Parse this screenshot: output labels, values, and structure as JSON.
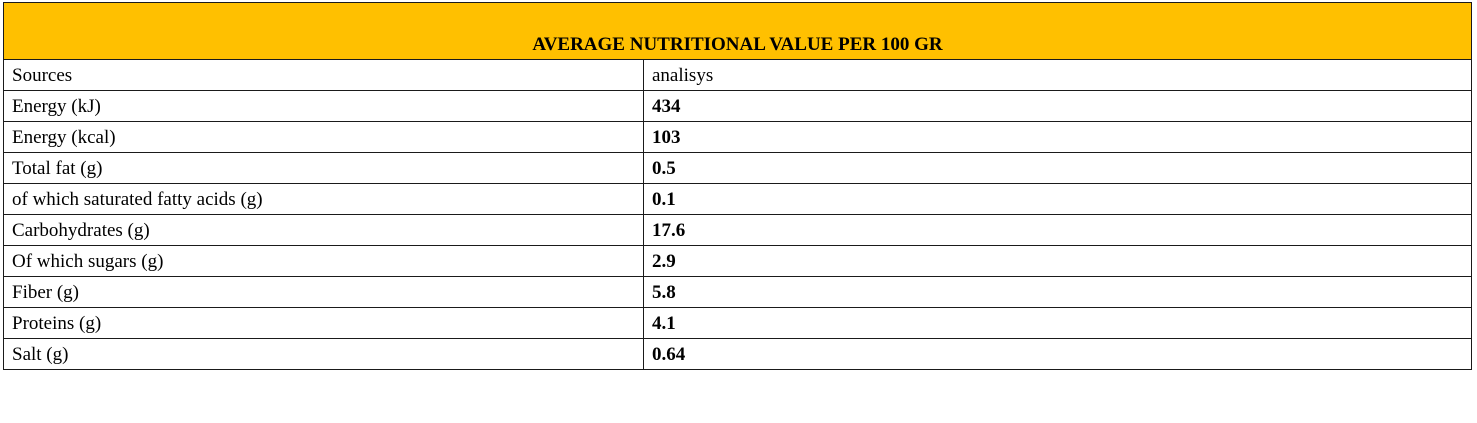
{
  "table": {
    "title": "AVERAGE NUTRITIONAL VALUE PER 100 GR",
    "header": {
      "label": "Sources",
      "value": "analisys"
    },
    "rows": [
      {
        "label": "Energy  (kJ)",
        "value": "434"
      },
      {
        "label": "Energy  (kcal)",
        "value": "103"
      },
      {
        "label": "Total fat (g)",
        "value": "0.5"
      },
      {
        "label": "of which saturated fatty acids (g)",
        "value": "0.1"
      },
      {
        "label": "Carbohydrates (g)",
        "value": "17.6"
      },
      {
        "label": "Of which sugars (g)",
        "value": "2.9"
      },
      {
        "label": "Fiber (g)",
        "value": "5.8"
      },
      {
        "label": "Proteins (g)",
        "value": "4.1"
      },
      {
        "label": "Salt (g)",
        "value": "0.64"
      }
    ],
    "colors": {
      "title_background": "#ffc000",
      "border": "#1a1a1a"
    }
  }
}
